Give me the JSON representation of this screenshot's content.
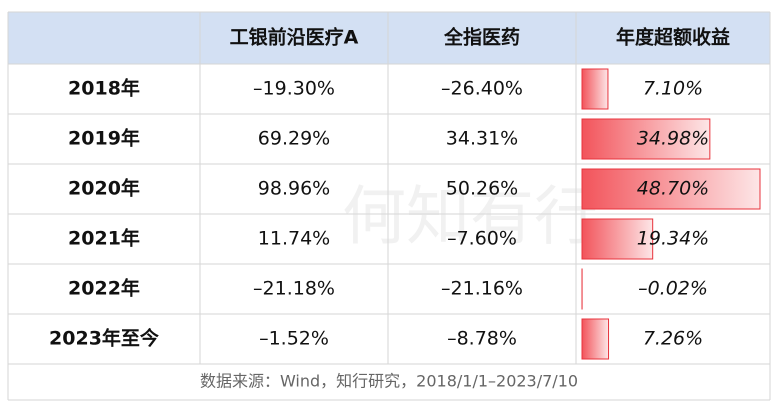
{
  "table": {
    "header": [
      "工银前沿医疗A",
      "全指医药",
      "年度超额收益"
    ],
    "rows": [
      [
        "2018年",
        "–19.30%",
        "–26.40%"
      ],
      [
        "2019年",
        "69.29%",
        "34.31%"
      ],
      [
        "2020年",
        "98.96%",
        "50.26%"
      ],
      [
        "2021年",
        "11.74%",
        "–7.60%"
      ],
      [
        "2022年",
        "–21.18%",
        "–21.16%"
      ],
      [
        "2023年至今",
        "–1.52%",
        "–8.78%"
      ]
    ],
    "excess": {
      "values": [
        7.1,
        34.98,
        48.7,
        19.34,
        -0.02,
        7.26
      ],
      "value_labels": [
        "7.10%",
        "34.98%",
        "48.70%",
        "19.34%",
        "–0.02%",
        "7.26%"
      ]
    }
  },
  "watermark": "何知有行",
  "footer": "数据来源：Wind，知行研究，2018/1/1–2023/7/10"
}
